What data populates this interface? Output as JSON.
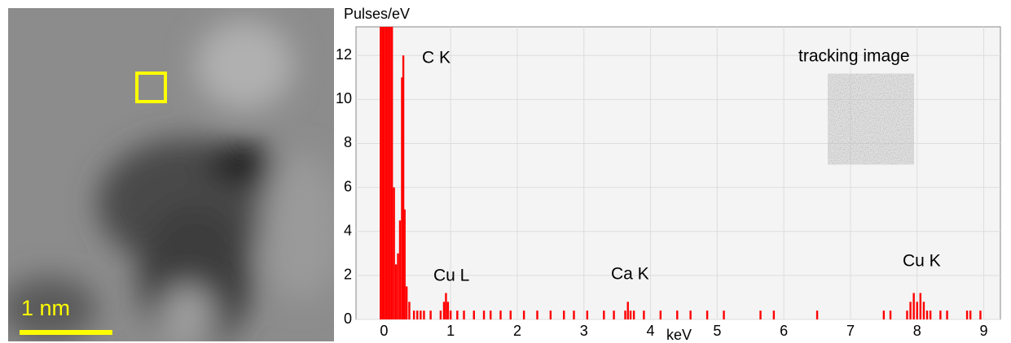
{
  "image": {
    "scale_label": "1 nm"
  },
  "chart_data": {
    "type": "bar",
    "y_label": "Pulses/eV",
    "x_label": "keV",
    "annotations": [
      "C K",
      "Cu L",
      "Ca K",
      "Cu K",
      "tracking image"
    ],
    "color": "#ff0000",
    "grid": true,
    "xlim": [
      -0.42,
      9.25
    ],
    "ylim": [
      0,
      13.3
    ],
    "xticks": [
      0,
      1,
      2,
      3,
      4,
      5,
      6,
      7,
      8,
      9
    ],
    "yticks": [
      0,
      2,
      4,
      6,
      8,
      10,
      12
    ],
    "x": [
      -0.05,
      -0.02,
      0.0,
      0.03,
      0.06,
      0.09,
      0.12,
      0.15,
      0.18,
      0.21,
      0.24,
      0.27,
      0.29,
      0.31,
      0.34,
      0.38,
      0.45,
      0.5,
      0.55,
      0.6,
      0.7,
      0.85,
      0.9,
      0.93,
      0.96,
      1.0,
      1.1,
      1.2,
      1.35,
      1.5,
      1.6,
      1.75,
      1.9,
      2.1,
      2.3,
      2.5,
      2.7,
      2.85,
      3.05,
      3.3,
      3.45,
      3.62,
      3.66,
      3.7,
      3.75,
      3.9,
      4.15,
      4.4,
      4.6,
      4.85,
      5.1,
      5.65,
      5.85,
      6.5,
      7.5,
      7.6,
      7.85,
      7.9,
      7.95,
      8.0,
      8.05,
      8.1,
      8.15,
      8.2,
      8.35,
      8.45,
      8.75,
      8.8,
      8.95
    ],
    "values": [
      13.3,
      13.3,
      13.3,
      13.3,
      13.3,
      13.3,
      13.3,
      6,
      2.5,
      3,
      4.5,
      11,
      12,
      5,
      1.5,
      0.8,
      0.4,
      0.4,
      0.4,
      0.4,
      0.4,
      0.4,
      0.8,
      1.2,
      0.8,
      0.4,
      0.4,
      0.4,
      0.4,
      0.4,
      0.4,
      0.4,
      0.4,
      0.4,
      0.4,
      0.4,
      0.4,
      0.4,
      0.4,
      0.4,
      0.4,
      0.4,
      0.8,
      0.4,
      0.4,
      0.4,
      0.4,
      0.4,
      0.4,
      0.4,
      0.4,
      0.4,
      0.4,
      0.4,
      0.4,
      0.4,
      0.4,
      0.8,
      1.2,
      0.8,
      1.2,
      0.8,
      0.4,
      0.4,
      0.4,
      0.4,
      0.4,
      0.4,
      0.4
    ]
  }
}
